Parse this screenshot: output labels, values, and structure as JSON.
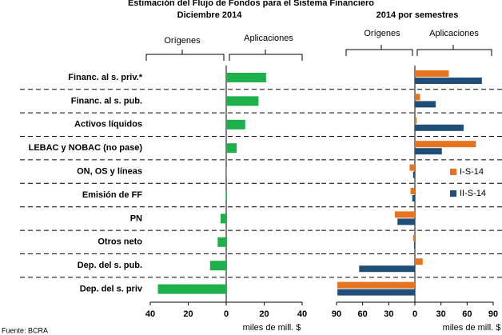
{
  "title": "Estimación del Flujo de Fondos para el Sistema Financiero",
  "source": "Fuente: BCRA",
  "chart_data": [
    {
      "type": "hbar",
      "subtitle": "Diciembre 2014",
      "left_label": "Orígenes",
      "right_label": "Aplicaciones",
      "x_label": "miles de mill. $",
      "categories": [
        "Financ. al s. priv.*",
        "Financ. al s. pub.",
        "Activos líquidos",
        "LEBAC y NOBAC (no pase)",
        "ON, OS y líneas",
        "Emisión de FF",
        "PN",
        "Otros neto",
        "Dep. del s. pub.",
        "Dep. del s. priv"
      ],
      "values": [
        21,
        17,
        10,
        5.5,
        0.3,
        -0.3,
        -3,
        -4.5,
        -8.5,
        -36
      ],
      "color": "#1db04b",
      "xlim": [
        -40,
        40
      ],
      "xticks": [
        {
          "value": -40,
          "label": "40"
        },
        {
          "value": -20,
          "label": "20"
        },
        0,
        20,
        40
      ]
    },
    {
      "type": "hbar",
      "subtitle": "2014 por semestres",
      "left_label": "Orígenes",
      "right_label": "Aplicaciones",
      "x_label": "miles de mill. $",
      "series": [
        {
          "name": "I-S-14",
          "color": "#e8731e",
          "values": [
            39,
            6,
            2,
            70,
            -6,
            -5,
            -23,
            -2,
            9,
            -89
          ]
        },
        {
          "name": "II-S-14",
          "color": "#1f4e79",
          "values": [
            77,
            24,
            56,
            31,
            -2,
            -3,
            -20,
            -1,
            -64,
            -89
          ]
        }
      ],
      "xlim": [
        -90,
        90
      ],
      "xticks": [
        {
          "value": -90,
          "label": "90"
        },
        {
          "value": -60,
          "label": "60"
        },
        {
          "value": -30,
          "label": "30"
        },
        0,
        30,
        60,
        90
      ],
      "legend": "right"
    }
  ]
}
